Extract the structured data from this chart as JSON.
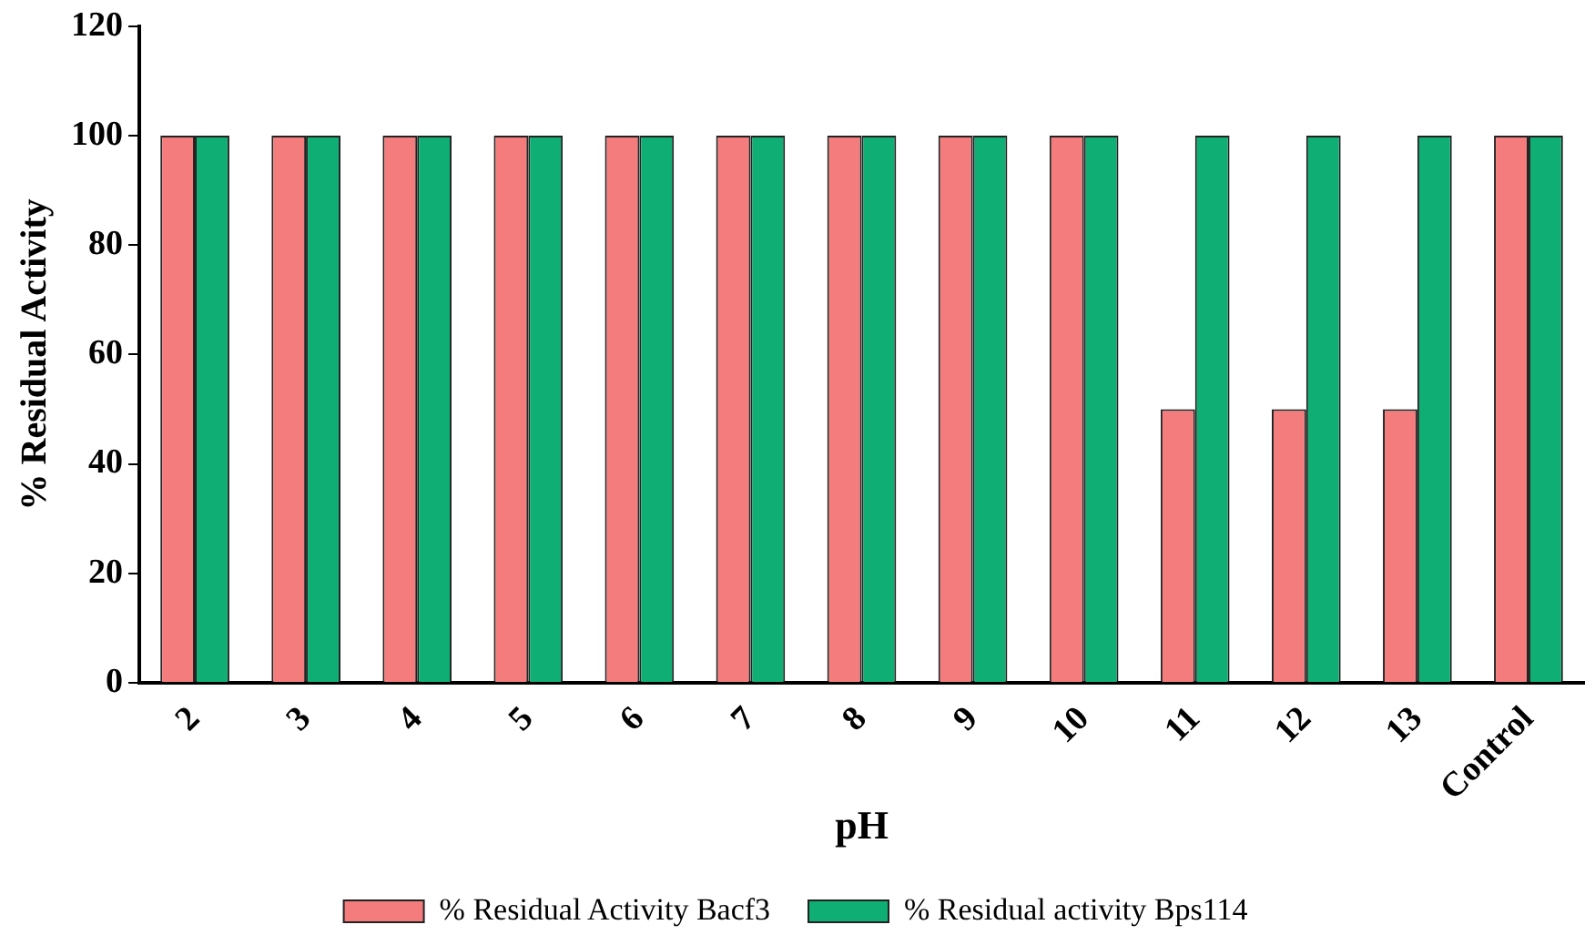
{
  "chart_data": {
    "type": "bar",
    "xlabel": "pH",
    "ylabel": "% Residual Activity",
    "categories": [
      "2",
      "3",
      "4",
      "5",
      "6",
      "7",
      "8",
      "9",
      "10",
      "11",
      "12",
      "13",
      "Control"
    ],
    "series": [
      {
        "name": "% Residual Activity Bacf3",
        "color": "#f47c7c",
        "values": [
          100,
          100,
          100,
          100,
          100,
          100,
          100,
          100,
          100,
          50,
          50,
          50,
          100
        ]
      },
      {
        "name": "% Residual activity Bps114",
        "color": "#0fae74",
        "values": [
          100,
          100,
          100,
          100,
          100,
          100,
          100,
          100,
          100,
          100,
          100,
          100,
          100
        ]
      }
    ],
    "ylim": [
      0,
      120
    ],
    "yticks": [
      0,
      20,
      40,
      60,
      80,
      100,
      120
    ],
    "grid": false,
    "legend": "bottom"
  }
}
